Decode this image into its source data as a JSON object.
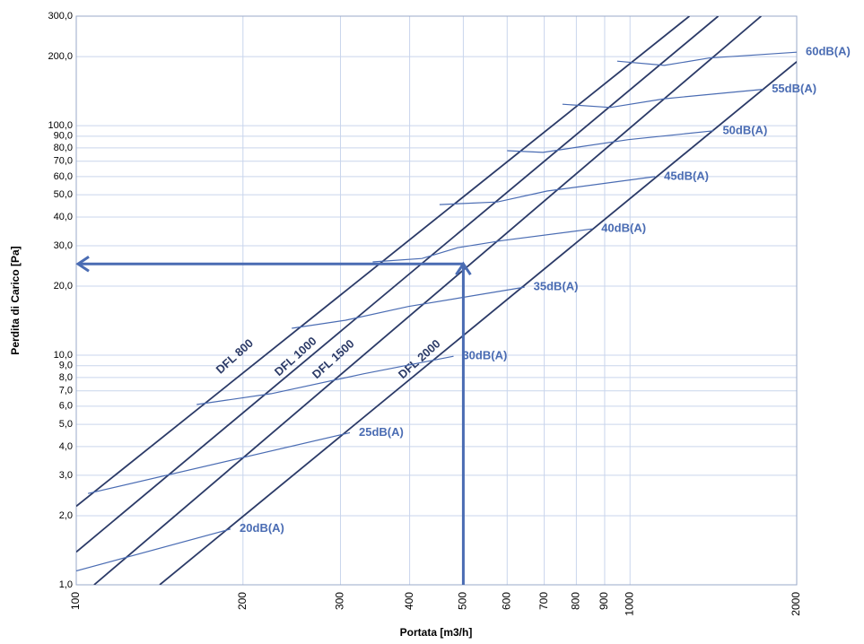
{
  "chart_data": {
    "type": "line",
    "log_x": true,
    "log_y": true,
    "grid": true,
    "x_label": "Portata [m3/h]",
    "y_label": "Perdita di Carico [Pa]",
    "xlim": [
      100,
      2000
    ],
    "ylim": [
      1,
      300
    ],
    "xticks": [
      100,
      200,
      300,
      400,
      500,
      600,
      700,
      800,
      900,
      1000,
      2000
    ],
    "yticks": [
      {
        "value": 1,
        "label": "1,0"
      },
      {
        "value": 2,
        "label": "2,0"
      },
      {
        "value": 3,
        "label": "3,0"
      },
      {
        "value": 4,
        "label": "4,0"
      },
      {
        "value": 5,
        "label": "5,0"
      },
      {
        "value": 6,
        "label": "6,0"
      },
      {
        "value": 7,
        "label": "7,0"
      },
      {
        "value": 8,
        "label": "8,0"
      },
      {
        "value": 9,
        "label": "9,0"
      },
      {
        "value": 10,
        "label": "10,0"
      },
      {
        "value": 20,
        "label": "20,0"
      },
      {
        "value": 30,
        "label": "30,0"
      },
      {
        "value": 40,
        "label": "40,0"
      },
      {
        "value": 50,
        "label": "50,0"
      },
      {
        "value": 60,
        "label": "60,0"
      },
      {
        "value": 70,
        "label": "70,0"
      },
      {
        "value": 80,
        "label": "80,0"
      },
      {
        "value": 90,
        "label": "90,0"
      },
      {
        "value": 100,
        "label": "100,0"
      },
      {
        "value": 200,
        "label": "200,0"
      },
      {
        "value": 300,
        "label": "300,0"
      }
    ],
    "series": [
      {
        "name": "DFL 800",
        "color": "#2b3a67",
        "x": [
          100,
          1280
        ],
        "values": [
          2.2,
          300
        ]
      },
      {
        "name": "DFL 1000",
        "color": "#2b3a67",
        "x": [
          100,
          1443
        ],
        "values": [
          1.39,
          300
        ]
      },
      {
        "name": "DFL 1500",
        "color": "#2b3a67",
        "x": [
          107.7,
          1725
        ],
        "values": [
          1,
          300
        ]
      },
      {
        "name": "DFL 2000",
        "color": "#2b3a67",
        "x": [
          141.5,
          2000
        ],
        "values": [
          1,
          190
        ]
      },
      {
        "name": "20dB(A)",
        "color": "#4a6cb3",
        "x": [
          100,
          190
        ],
        "values": [
          1.15,
          1.75
        ]
      },
      {
        "name": "25dB(A)",
        "color": "#4a6cb3",
        "x": [
          105,
          312
        ],
        "values": [
          2.5,
          4.6
        ]
      },
      {
        "name": "30dB(A)",
        "color": "#4a6cb3",
        "x": [
          165,
          225,
          330,
          480
        ],
        "values": [
          6.1,
          6.8,
          8.3,
          9.9
        ]
      },
      {
        "name": "35dB(A)",
        "color": "#4a6cb3",
        "x": [
          245,
          306,
          398,
          645
        ],
        "values": [
          13.1,
          14.2,
          16.3,
          19.8
        ]
      },
      {
        "name": "40dB(A)",
        "color": "#4a6cb3",
        "x": [
          343,
          421,
          488,
          588,
          855
        ],
        "values": [
          25.5,
          26.4,
          29.4,
          31.6,
          35.5
        ]
      },
      {
        "name": "45dB(A)",
        "color": "#4a6cb3",
        "x": [
          453,
          576,
          708,
          1110
        ],
        "values": [
          45.3,
          46.5,
          51.9,
          60
        ]
      },
      {
        "name": "50dB(A)",
        "color": "#4a6cb3",
        "x": [
          600,
          696,
          793,
          993,
          1416
        ],
        "values": [
          77.8,
          76.5,
          80.2,
          86.9,
          95
        ]
      },
      {
        "name": "55dB(A)",
        "color": "#4a6cb3",
        "x": [
          755,
          921,
          1153,
          1737
        ],
        "values": [
          124,
          120,
          131,
          144
        ]
      },
      {
        "name": "60dB(A)",
        "color": "#4a6cb3",
        "x": [
          948,
          1153,
          1389,
          2000
        ],
        "values": [
          191,
          183,
          197,
          209
        ]
      }
    ],
    "arrow": {
      "x": 500,
      "y": 25,
      "color": "#4a6cb3"
    }
  }
}
